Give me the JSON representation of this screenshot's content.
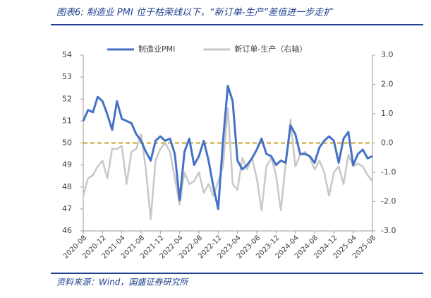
{
  "chart_data": {
    "type": "line",
    "title": "图表6:  制造业 PMI 位于枯荣线以下，“新订单-生产”差值进一步走扩",
    "source": "资料来源：Wind，国盛证券研究所",
    "categories": [
      "2020-08",
      null,
      null,
      null,
      "2020-12",
      null,
      null,
      null,
      "2021-04",
      null,
      null,
      null,
      "2021-08",
      null,
      null,
      null,
      "2021-12",
      null,
      null,
      null,
      "2022-04",
      null,
      null,
      null,
      "2022-08",
      null,
      null,
      null,
      "2022-12",
      null,
      null,
      null,
      "2023-04",
      null,
      null,
      null,
      "2023-08",
      null,
      null,
      null,
      "2023-12",
      null,
      null,
      null,
      "2024-04",
      null,
      null,
      null,
      "2024-08",
      null,
      null,
      null,
      "2024-12",
      null,
      null,
      null,
      "2025-04",
      null,
      null,
      null,
      "2025-08"
    ],
    "series": [
      {
        "name": "制造业PMI",
        "color": "#4472c4",
        "values": [
          51.0,
          51.5,
          51.4,
          52.1,
          51.9,
          51.3,
          50.6,
          51.9,
          51.1,
          51.0,
          50.9,
          50.4,
          50.1,
          49.6,
          49.2,
          50.1,
          50.3,
          50.1,
          50.2,
          49.5,
          47.4,
          49.6,
          50.2,
          49.0,
          49.4,
          50.1,
          49.2,
          48.0,
          47.0,
          50.1,
          52.6,
          51.9,
          49.2,
          48.8,
          49.0,
          49.3,
          49.7,
          50.2,
          49.5,
          49.4,
          49.0,
          49.2,
          49.1,
          50.8,
          50.4,
          49.5,
          49.5,
          49.4,
          49.1,
          49.8,
          50.1,
          50.3,
          50.1,
          49.1,
          50.2,
          50.5,
          49.0,
          49.5,
          49.7,
          49.3,
          49.4
        ]
      },
      {
        "name": "新订单-生产（右轴）",
        "color": "#c8c8c8",
        "axis": "y2",
        "values": [
          -1.8,
          -1.2,
          -1.1,
          -0.8,
          -0.6,
          -1.2,
          -0.2,
          -0.2,
          -0.1,
          -1.4,
          -0.3,
          -0.2,
          0.3,
          -0.9,
          -2.6,
          -0.6,
          -0.2,
          0.0,
          -0.3,
          -1.2,
          -2.1,
          -1.0,
          -1.4,
          -1.3,
          -1.0,
          -1.7,
          -1.4,
          -1.8,
          -1.3,
          -0.8,
          1.2,
          -1.4,
          -1.6,
          -0.5,
          -0.9,
          -0.5,
          -1.2,
          -2.3,
          -0.8,
          -0.5,
          -1.1,
          -2.3,
          -0.7,
          0.8,
          -0.8,
          -0.4,
          -0.3,
          -0.5,
          -0.9,
          -0.6,
          -1.0,
          -1.8,
          -1.0,
          -0.8,
          -1.4,
          -0.4,
          -0.8,
          -0.7,
          -0.8,
          -1.1,
          -1.3
        ]
      }
    ],
    "ylim": [
      46,
      54
    ],
    "yticks": [
      46,
      47,
      48,
      49,
      50,
      51,
      52,
      53,
      54
    ],
    "y2lim": [
      -3,
      3
    ],
    "y2ticks": [
      {
        "value": -3,
        "label": "-3.0"
      },
      {
        "value": -2,
        "label": "-2.0"
      },
      {
        "value": -1,
        "label": "-1.0"
      },
      {
        "value": 0,
        "label": "0.0"
      },
      {
        "value": 1,
        "label": "1.0"
      },
      {
        "value": 2,
        "label": "2.0"
      },
      {
        "value": 3,
        "label": "3.0"
      }
    ],
    "reference_line": {
      "value": 50,
      "color": "#c9a227"
    },
    "legend": "top"
  }
}
